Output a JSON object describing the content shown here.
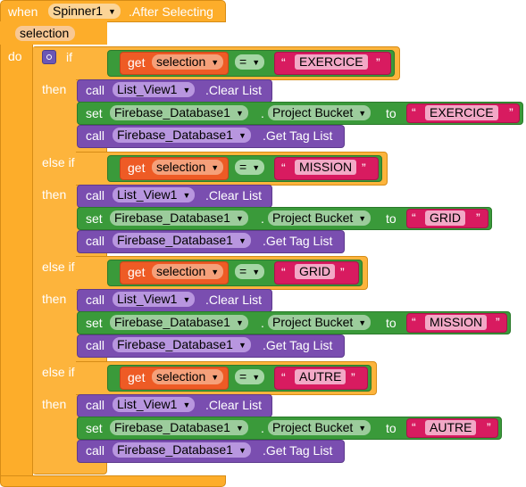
{
  "event": {
    "when_label": "when",
    "component": "Spinner1",
    "event_name": ".After Selecting",
    "param": "selection",
    "do_label": "do"
  },
  "labels": {
    "if": "if",
    "else_if": "else if",
    "then": "then",
    "get": "get",
    "call": "call",
    "set": "set",
    "to": "to",
    "equals": "=",
    "open_quote": "“",
    "close_quote": "”"
  },
  "branches": [
    {
      "condition": {
        "variable": "selection",
        "value": "EXERCICE"
      },
      "actions": {
        "clear_component": "List_View1",
        "clear_method": ".Clear List",
        "set_component": "Firebase_Database1",
        "set_property": "Project Bucket",
        "set_value": "EXERCICE",
        "tag_component": "Firebase_Database1",
        "tag_method": ".Get Tag List"
      }
    },
    {
      "condition": {
        "variable": "selection",
        "value": "MISSION"
      },
      "actions": {
        "clear_component": "List_View1",
        "clear_method": ".Clear List",
        "set_component": "Firebase_Database1",
        "set_property": "Project Bucket",
        "set_value": "GRID",
        "tag_component": "Firebase_Database1",
        "tag_method": ".Get Tag List"
      }
    },
    {
      "condition": {
        "variable": "selection",
        "value": "GRID"
      },
      "actions": {
        "clear_component": "List_View1",
        "clear_method": ".Clear List",
        "set_component": "Firebase_Database1",
        "set_property": "Project Bucket",
        "set_value": "MISSION",
        "tag_component": "Firebase_Database1",
        "tag_method": ".Get Tag List"
      }
    },
    {
      "condition": {
        "variable": "selection",
        "value": "AUTRE"
      },
      "actions": {
        "clear_component": "List_View1",
        "clear_method": ".Clear List",
        "set_component": "Firebase_Database1",
        "set_property": "Project Bucket",
        "set_value": "AUTRE",
        "tag_component": "Firebase_Database1",
        "tag_method": ".Get Tag List"
      }
    }
  ],
  "colors": {
    "event": "#fdad2a",
    "control": "#fdb43c",
    "procedure": "#7a4eb0",
    "setter": "#3a9a3a",
    "compare": "#3a9a3a",
    "getter": "#ee5b25",
    "string": "#d81b60",
    "mutator": "#6b57b5"
  },
  "icons": {
    "mutator": "gear-icon",
    "dropdown": "dropdown-arrow-icon"
  }
}
